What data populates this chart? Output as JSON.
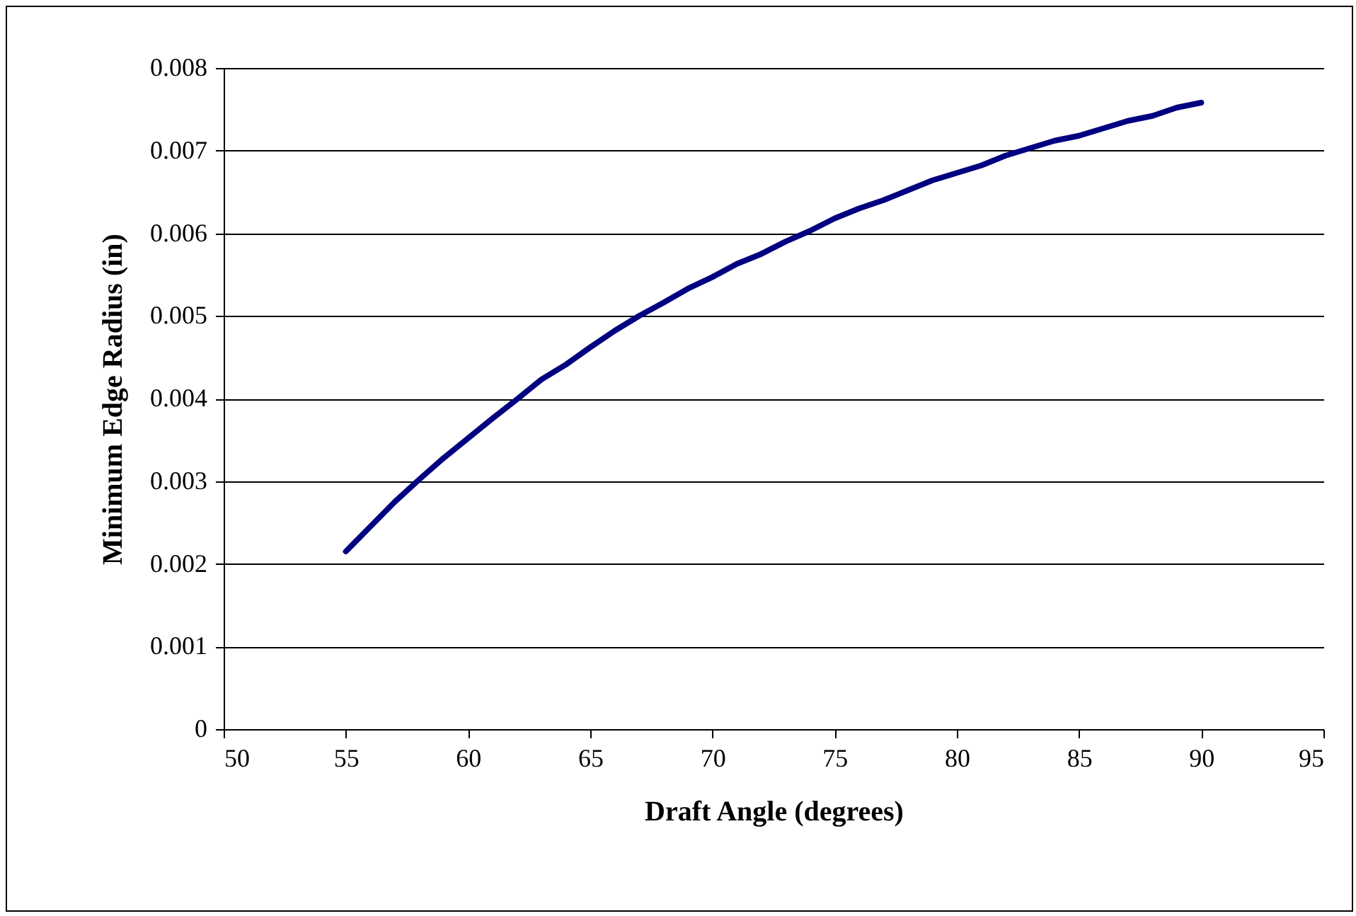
{
  "chart_data": {
    "type": "line",
    "xlabel": "Draft Angle (degrees)",
    "ylabel": "Minimum Edge Radius (in)",
    "x": [
      55,
      56,
      57,
      58,
      59,
      60,
      61,
      62,
      63,
      64,
      65,
      66,
      67,
      68,
      69,
      70,
      71,
      72,
      73,
      74,
      75,
      76,
      77,
      78,
      79,
      80,
      81,
      82,
      83,
      84,
      85,
      86,
      87,
      88,
      89,
      90
    ],
    "series": [
      {
        "color": "#000080",
        "values": [
          0.00215,
          0.00245,
          0.00275,
          0.00302,
          0.00328,
          0.00352,
          0.00376,
          0.00399,
          0.00423,
          0.00441,
          0.00462,
          0.00482,
          0.005,
          0.00516,
          0.00533,
          0.00547,
          0.00563,
          0.00575,
          0.0059,
          0.00603,
          0.00618,
          0.0063,
          0.0064,
          0.00652,
          0.00664,
          0.00673,
          0.00682,
          0.00694,
          0.00703,
          0.00712,
          0.00718,
          0.00727,
          0.00736,
          0.00742,
          0.00752,
          0.00758
        ]
      }
    ],
    "xlim": [
      50,
      95
    ],
    "xticks": [
      50,
      55,
      60,
      65,
      70,
      75,
      80,
      85,
      90,
      95
    ],
    "ylim": [
      0,
      0.008
    ],
    "yticks": [
      0,
      0.001,
      0.002,
      0.003,
      0.004,
      0.005,
      0.006,
      0.007,
      0.008
    ],
    "grid": "y",
    "marker": "none",
    "line_style": "solid"
  }
}
